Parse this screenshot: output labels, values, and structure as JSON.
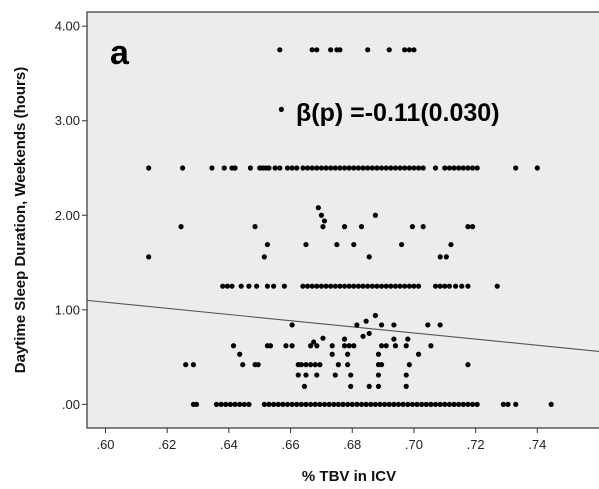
{
  "chart_data": {
    "type": "scatter",
    "panel_label": "a",
    "annotation": "β(p) =-0.11(0.030)",
    "xlabel": "% TBV in ICV",
    "ylabel": "Daytime Sleep Duration, Weekends (hours)",
    "xlim": [
      0.594,
      0.76
    ],
    "ylim": [
      -0.25,
      4.15
    ],
    "x_ticks": [
      0.6,
      0.62,
      0.64,
      0.66,
      0.68,
      0.7,
      0.72,
      0.74
    ],
    "x_tick_labels": [
      ".60",
      ".62",
      ".64",
      ".66",
      ".68",
      ".70",
      ".72",
      ".74"
    ],
    "y_ticks": [
      0,
      1,
      2,
      3,
      4
    ],
    "y_tick_labels": [
      ".00",
      "1.00",
      "2.00",
      "3.00",
      "4.00"
    ],
    "grid": false,
    "fit_line": {
      "x": [
        0.594,
        0.76
      ],
      "y": [
        1.1,
        0.56
      ]
    },
    "colors": {
      "background": "#ececec",
      "points": "#000000",
      "line": "#555555",
      "frame": "#333333"
    },
    "points": [
      [
        0.6565,
        3.75
      ],
      [
        0.667,
        3.75
      ],
      [
        0.6685,
        3.75
      ],
      [
        0.673,
        3.75
      ],
      [
        0.675,
        3.75
      ],
      [
        0.676,
        3.75
      ],
      [
        0.685,
        3.75
      ],
      [
        0.692,
        3.75
      ],
      [
        0.697,
        3.75
      ],
      [
        0.6985,
        3.75
      ],
      [
        0.7,
        3.75
      ],
      [
        0.657,
        3.12
      ],
      [
        0.614,
        2.5
      ],
      [
        0.625,
        2.5
      ],
      [
        0.6345,
        2.5
      ],
      [
        0.6385,
        2.5
      ],
      [
        0.641,
        2.5
      ],
      [
        0.642,
        2.5
      ],
      [
        0.647,
        2.5
      ],
      [
        0.65,
        2.5
      ],
      [
        0.651,
        2.5
      ],
      [
        0.652,
        2.5
      ],
      [
        0.653,
        2.5
      ],
      [
        0.655,
        2.5
      ],
      [
        0.6565,
        2.5
      ],
      [
        0.659,
        2.5
      ],
      [
        0.6605,
        2.5
      ],
      [
        0.662,
        2.5
      ],
      [
        0.664,
        2.5
      ],
      [
        0.6655,
        2.5
      ],
      [
        0.667,
        2.5
      ],
      [
        0.6685,
        2.5
      ],
      [
        0.67,
        2.5
      ],
      [
        0.6715,
        2.5
      ],
      [
        0.673,
        2.5
      ],
      [
        0.6745,
        2.5
      ],
      [
        0.676,
        2.5
      ],
      [
        0.6775,
        2.5
      ],
      [
        0.679,
        2.5
      ],
      [
        0.6805,
        2.5
      ],
      [
        0.682,
        2.5
      ],
      [
        0.6835,
        2.5
      ],
      [
        0.685,
        2.5
      ],
      [
        0.6865,
        2.5
      ],
      [
        0.688,
        2.5
      ],
      [
        0.6895,
        2.5
      ],
      [
        0.691,
        2.5
      ],
      [
        0.6925,
        2.5
      ],
      [
        0.694,
        2.5
      ],
      [
        0.6955,
        2.5
      ],
      [
        0.697,
        2.5
      ],
      [
        0.6985,
        2.5
      ],
      [
        0.7,
        2.5
      ],
      [
        0.7015,
        2.5
      ],
      [
        0.703,
        2.5
      ],
      [
        0.707,
        2.5
      ],
      [
        0.71,
        2.5
      ],
      [
        0.7115,
        2.5
      ],
      [
        0.713,
        2.5
      ],
      [
        0.7145,
        2.5
      ],
      [
        0.716,
        2.5
      ],
      [
        0.7175,
        2.5
      ],
      [
        0.719,
        2.5
      ],
      [
        0.7205,
        2.5
      ],
      [
        0.733,
        2.5
      ],
      [
        0.74,
        2.5
      ],
      [
        0.669,
        2.08
      ],
      [
        0.67,
        2.0
      ],
      [
        0.671,
        1.94
      ],
      [
        0.6875,
        2.0
      ],
      [
        0.6245,
        1.88
      ],
      [
        0.6485,
        1.88
      ],
      [
        0.6705,
        1.88
      ],
      [
        0.6775,
        1.88
      ],
      [
        0.683,
        1.88
      ],
      [
        0.6995,
        1.88
      ],
      [
        0.703,
        1.88
      ],
      [
        0.7175,
        1.88
      ],
      [
        0.719,
        1.88
      ],
      [
        0.6525,
        1.69
      ],
      [
        0.665,
        1.69
      ],
      [
        0.675,
        1.69
      ],
      [
        0.6805,
        1.69
      ],
      [
        0.696,
        1.69
      ],
      [
        0.712,
        1.69
      ],
      [
        0.614,
        1.56
      ],
      [
        0.6515,
        1.56
      ],
      [
        0.6855,
        1.56
      ],
      [
        0.7085,
        1.56
      ],
      [
        0.7105,
        1.56
      ],
      [
        0.638,
        1.25
      ],
      [
        0.6395,
        1.25
      ],
      [
        0.641,
        1.25
      ],
      [
        0.644,
        1.25
      ],
      [
        0.6465,
        1.25
      ],
      [
        0.649,
        1.25
      ],
      [
        0.6525,
        1.25
      ],
      [
        0.6545,
        1.25
      ],
      [
        0.658,
        1.25
      ],
      [
        0.664,
        1.25
      ],
      [
        0.6655,
        1.25
      ],
      [
        0.667,
        1.25
      ],
      [
        0.6685,
        1.25
      ],
      [
        0.67,
        1.25
      ],
      [
        0.6715,
        1.25
      ],
      [
        0.673,
        1.25
      ],
      [
        0.6745,
        1.25
      ],
      [
        0.676,
        1.25
      ],
      [
        0.6775,
        1.25
      ],
      [
        0.679,
        1.25
      ],
      [
        0.6805,
        1.25
      ],
      [
        0.682,
        1.25
      ],
      [
        0.6835,
        1.25
      ],
      [
        0.685,
        1.25
      ],
      [
        0.6865,
        1.25
      ],
      [
        0.688,
        1.25
      ],
      [
        0.6895,
        1.25
      ],
      [
        0.691,
        1.25
      ],
      [
        0.6925,
        1.25
      ],
      [
        0.694,
        1.25
      ],
      [
        0.6955,
        1.25
      ],
      [
        0.697,
        1.25
      ],
      [
        0.6985,
        1.25
      ],
      [
        0.7,
        1.25
      ],
      [
        0.7015,
        1.25
      ],
      [
        0.707,
        1.25
      ],
      [
        0.7085,
        1.25
      ],
      [
        0.71,
        1.25
      ],
      [
        0.7115,
        1.25
      ],
      [
        0.7135,
        1.25
      ],
      [
        0.7155,
        1.25
      ],
      [
        0.7175,
        1.25
      ],
      [
        0.727,
        1.25
      ],
      [
        0.6875,
        0.94
      ],
      [
        0.6845,
        0.88
      ],
      [
        0.6605,
        0.84
      ],
      [
        0.6815,
        0.84
      ],
      [
        0.6895,
        0.84
      ],
      [
        0.6935,
        0.84
      ],
      [
        0.7045,
        0.84
      ],
      [
        0.7085,
        0.84
      ],
      [
        0.6855,
        0.75
      ],
      [
        0.6835,
        0.72
      ],
      [
        0.6705,
        0.7
      ],
      [
        0.6775,
        0.69
      ],
      [
        0.6935,
        0.69
      ],
      [
        0.698,
        0.69
      ],
      [
        0.6675,
        0.66
      ],
      [
        0.6415,
        0.62
      ],
      [
        0.6525,
        0.62
      ],
      [
        0.6535,
        0.62
      ],
      [
        0.6585,
        0.62
      ],
      [
        0.6605,
        0.62
      ],
      [
        0.6665,
        0.62
      ],
      [
        0.6685,
        0.62
      ],
      [
        0.6735,
        0.62
      ],
      [
        0.6775,
        0.62
      ],
      [
        0.679,
        0.62
      ],
      [
        0.6805,
        0.62
      ],
      [
        0.6895,
        0.62
      ],
      [
        0.691,
        0.62
      ],
      [
        0.694,
        0.62
      ],
      [
        0.6975,
        0.62
      ],
      [
        0.7055,
        0.62
      ],
      [
        0.6435,
        0.53
      ],
      [
        0.6735,
        0.53
      ],
      [
        0.6785,
        0.53
      ],
      [
        0.6885,
        0.53
      ],
      [
        0.7015,
        0.53
      ],
      [
        0.626,
        0.42
      ],
      [
        0.6285,
        0.42
      ],
      [
        0.6445,
        0.42
      ],
      [
        0.6485,
        0.42
      ],
      [
        0.6495,
        0.42
      ],
      [
        0.6625,
        0.42
      ],
      [
        0.6635,
        0.42
      ],
      [
        0.665,
        0.42
      ],
      [
        0.6665,
        0.42
      ],
      [
        0.668,
        0.42
      ],
      [
        0.6695,
        0.42
      ],
      [
        0.6755,
        0.42
      ],
      [
        0.6785,
        0.42
      ],
      [
        0.6885,
        0.42
      ],
      [
        0.6895,
        0.42
      ],
      [
        0.6985,
        0.42
      ],
      [
        0.7175,
        0.42
      ],
      [
        0.6625,
        0.31
      ],
      [
        0.665,
        0.31
      ],
      [
        0.6685,
        0.31
      ],
      [
        0.6745,
        0.31
      ],
      [
        0.6795,
        0.31
      ],
      [
        0.6885,
        0.31
      ],
      [
        0.6975,
        0.31
      ],
      [
        0.6645,
        0.19
      ],
      [
        0.6795,
        0.19
      ],
      [
        0.6855,
        0.19
      ],
      [
        0.6885,
        0.19
      ],
      [
        0.6975,
        0.19
      ],
      [
        0.6285,
        0
      ],
      [
        0.6295,
        0
      ],
      [
        0.636,
        0
      ],
      [
        0.6375,
        0
      ],
      [
        0.639,
        0
      ],
      [
        0.6405,
        0
      ],
      [
        0.642,
        0
      ],
      [
        0.6435,
        0
      ],
      [
        0.645,
        0
      ],
      [
        0.6465,
        0
      ],
      [
        0.6515,
        0
      ],
      [
        0.653,
        0
      ],
      [
        0.6545,
        0
      ],
      [
        0.656,
        0
      ],
      [
        0.6575,
        0
      ],
      [
        0.659,
        0
      ],
      [
        0.6605,
        0
      ],
      [
        0.662,
        0
      ],
      [
        0.6635,
        0
      ],
      [
        0.665,
        0
      ],
      [
        0.6665,
        0
      ],
      [
        0.668,
        0
      ],
      [
        0.6695,
        0
      ],
      [
        0.671,
        0
      ],
      [
        0.6725,
        0
      ],
      [
        0.674,
        0
      ],
      [
        0.6755,
        0
      ],
      [
        0.677,
        0
      ],
      [
        0.6785,
        0
      ],
      [
        0.68,
        0
      ],
      [
        0.6815,
        0
      ],
      [
        0.683,
        0
      ],
      [
        0.6845,
        0
      ],
      [
        0.686,
        0
      ],
      [
        0.6875,
        0
      ],
      [
        0.689,
        0
      ],
      [
        0.6905,
        0
      ],
      [
        0.692,
        0
      ],
      [
        0.6935,
        0
      ],
      [
        0.695,
        0
      ],
      [
        0.6965,
        0
      ],
      [
        0.698,
        0
      ],
      [
        0.6995,
        0
      ],
      [
        0.701,
        0
      ],
      [
        0.7025,
        0
      ],
      [
        0.704,
        0
      ],
      [
        0.7055,
        0
      ],
      [
        0.707,
        0
      ],
      [
        0.7085,
        0
      ],
      [
        0.71,
        0
      ],
      [
        0.7115,
        0
      ],
      [
        0.713,
        0
      ],
      [
        0.7145,
        0
      ],
      [
        0.716,
        0
      ],
      [
        0.7175,
        0
      ],
      [
        0.719,
        0
      ],
      [
        0.7205,
        0
      ],
      [
        0.729,
        0
      ],
      [
        0.7305,
        0
      ],
      [
        0.733,
        0
      ],
      [
        0.7445,
        0
      ]
    ]
  }
}
